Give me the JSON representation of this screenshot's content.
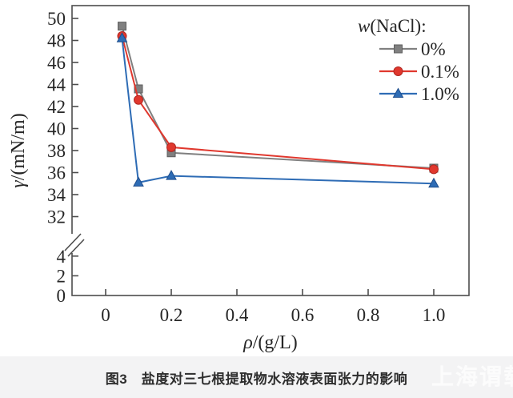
{
  "figure": {
    "caption": "图3　盐度对三七根提取物水溶液表面张力的影响",
    "watermark": "上海谓载"
  },
  "chart_data": {
    "type": "line",
    "title": "",
    "xlabel": {
      "italic": "ρ",
      "rest": "/(g/L)"
    },
    "ylabel": {
      "italic": "γ",
      "rest": "/(mN/m)"
    },
    "x": [
      0.05,
      0.1,
      0.2,
      1.0
    ],
    "series": [
      {
        "name": "0%",
        "marker": "square",
        "color": "#808080",
        "edge": "#5e5e5e",
        "values": [
          49.3,
          43.6,
          37.8,
          36.4
        ]
      },
      {
        "name": "0.1%",
        "marker": "circle",
        "color": "#e0382e",
        "edge": "#b02620",
        "values": [
          48.4,
          42.6,
          38.3,
          36.3
        ]
      },
      {
        "name": "1.0%",
        "marker": "triangle",
        "color": "#2e6cb5",
        "edge": "#1f4e8c",
        "values": [
          48.2,
          35.1,
          35.7,
          35.0
        ]
      }
    ],
    "legend": {
      "title": {
        "italic": "w",
        "rest": "(NaCl):"
      },
      "position": "top-right"
    },
    "x_tick_labels": [
      "0",
      "0.2",
      "0.4",
      "0.6",
      "0.8",
      "1.0"
    ],
    "x_tick_values": [
      0,
      0.2,
      0.4,
      0.6,
      0.8,
      1.0
    ],
    "y_ticks_upper": [
      32,
      34,
      36,
      38,
      40,
      42,
      44,
      46,
      48,
      50
    ],
    "y_ticks_lower": [
      0,
      2,
      4
    ],
    "y_axis_break": {
      "between": [
        4,
        32
      ]
    },
    "xlim": [
      -0.1,
      1.11
    ],
    "ylim_upper": [
      31.5,
      51.2
    ],
    "ylim_lower": [
      0,
      5
    ],
    "grid": false,
    "axis_color": "#4d4d4d"
  }
}
